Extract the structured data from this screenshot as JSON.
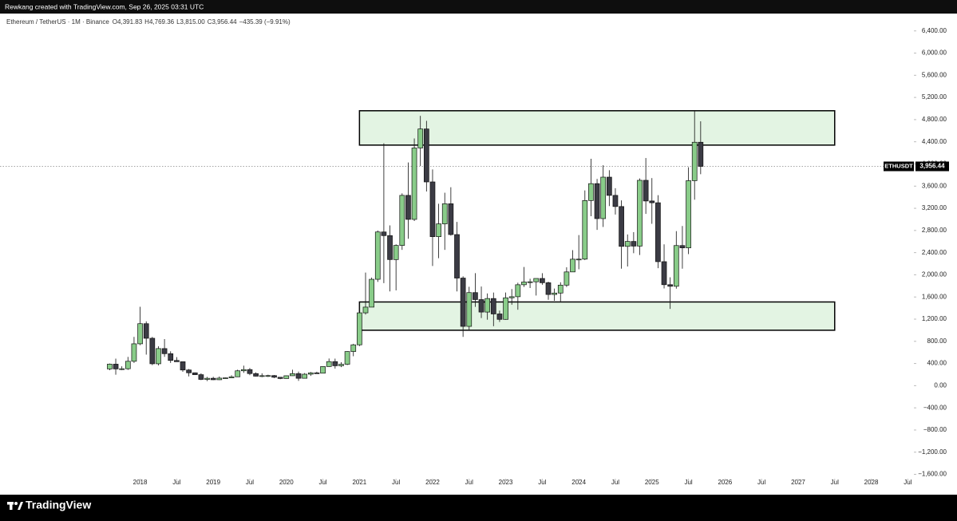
{
  "header": {
    "credit": "Rewkang created with TradingView.com, Sep 26, 2025 03:31 UTC"
  },
  "footer": {
    "brand": "TradingView"
  },
  "chart_data": {
    "type": "candlestick",
    "instrument": "Ethereum / TetherUS · 1M · Binance",
    "legend_values": [
      {
        "key": "O",
        "text": "4,391.83"
      },
      {
        "key": "H",
        "text": "4,769.36"
      },
      {
        "key": "L",
        "text": "3,815.00"
      },
      {
        "key": "C",
        "text": "3,956.44"
      }
    ],
    "change": "−435.39 (−9.91%)",
    "symbol": "ETHUSDT",
    "last_price": {
      "value": 3956.44,
      "label": "3,956.44"
    },
    "up_color": "#89cc89",
    "down_color": "#3b3b44",
    "zone_color": "#e3f4e3",
    "x": [
      "2017-08",
      "2017-09",
      "2017-10",
      "2017-11",
      "2017-12",
      "2018-01",
      "2018-02",
      "2018-03",
      "2018-04",
      "2018-05",
      "2018-06",
      "2018-07",
      "2018-08",
      "2018-09",
      "2018-10",
      "2018-11",
      "2018-12",
      "2019-01",
      "2019-02",
      "2019-03",
      "2019-04",
      "2019-05",
      "2019-06",
      "2019-07",
      "2019-08",
      "2019-09",
      "2019-10",
      "2019-11",
      "2019-12",
      "2020-01",
      "2020-02",
      "2020-03",
      "2020-04",
      "2020-05",
      "2020-06",
      "2020-07",
      "2020-08",
      "2020-09",
      "2020-10",
      "2020-11",
      "2020-12",
      "2021-01",
      "2021-02",
      "2021-03",
      "2021-04",
      "2021-05",
      "2021-06",
      "2021-07",
      "2021-08",
      "2021-09",
      "2021-10",
      "2021-11",
      "2021-12",
      "2022-01",
      "2022-02",
      "2022-03",
      "2022-04",
      "2022-05",
      "2022-06",
      "2022-07",
      "2022-08",
      "2022-09",
      "2022-10",
      "2022-11",
      "2022-12",
      "2023-01",
      "2023-02",
      "2023-03",
      "2023-04",
      "2023-05",
      "2023-06",
      "2023-07",
      "2023-08",
      "2023-09",
      "2023-10",
      "2023-11",
      "2023-12",
      "2024-01",
      "2024-02",
      "2024-03",
      "2024-04",
      "2024-05",
      "2024-06",
      "2024-07",
      "2024-08",
      "2024-09",
      "2024-10",
      "2024-11",
      "2024-12",
      "2025-01",
      "2025-02",
      "2025-03",
      "2025-04",
      "2025-05",
      "2025-06",
      "2025-07",
      "2025-08",
      "2025-09"
    ],
    "open": [
      302,
      388,
      302,
      305,
      440,
      755,
      1118,
      855,
      395,
      669,
      577,
      455,
      432,
      283,
      232,
      198,
      113,
      133,
      107,
      136,
      141,
      160,
      268,
      290,
      218,
      171,
      180,
      182,
      152,
      129,
      179,
      217,
      133,
      207,
      231,
      225,
      345,
      434,
      359,
      386,
      616,
      737,
      1314,
      1417,
      1919,
      2773,
      2707,
      2275,
      2530,
      3433,
      3000,
      4288,
      4631,
      3676,
      2688,
      2919,
      3282,
      2726,
      1941,
      1070,
      1679,
      1553,
      1328,
      1572,
      1294,
      1196,
      1585,
      1605,
      1821,
      1870,
      1874,
      1934,
      1857,
      1645,
      1671,
      1814,
      2052,
      2282,
      2283,
      3340,
      3645,
      3014,
      3762,
      3433,
      3232,
      2513,
      2602,
      2518,
      3705,
      3332,
      3300,
      2237,
      1822,
      1793,
      2528,
      2486,
      3698,
      4391.83
    ],
    "high": [
      399,
      488,
      349,
      519,
      880,
      1424,
      1160,
      880,
      710,
      840,
      620,
      515,
      435,
      300,
      238,
      223,
      158,
      160,
      166,
      146,
      187,
      288,
      361,
      319,
      239,
      223,
      197,
      192,
      153,
      183,
      288,
      253,
      227,
      247,
      252,
      350,
      490,
      488,
      422,
      622,
      755,
      1476,
      2041,
      1950,
      2800,
      4372,
      2891,
      2550,
      3470,
      4027,
      4460,
      4868,
      4778,
      3900,
      3282,
      3481,
      3580,
      2954,
      1973,
      1784,
      2030,
      1789,
      1664,
      1680,
      1353,
      1680,
      1743,
      1857,
      2141,
      1928,
      1930,
      2029,
      1877,
      1752,
      1865,
      2135,
      2445,
      2717,
      3523,
      4093,
      3730,
      3977,
      3887,
      3562,
      3343,
      2728,
      2770,
      3739,
      4107,
      3745,
      3437,
      2550,
      1955,
      2788,
      2880,
      3941,
      4956,
      4769.36
    ],
    "low": [
      279,
      197,
      281,
      285,
      410,
      730,
      560,
      370,
      365,
      520,
      410,
      430,
      250,
      167,
      193,
      100,
      82,
      101,
      102,
      130,
      140,
      156,
      231,
      188,
      165,
      153,
      156,
      136,
      117,
      127,
      177,
      86,
      131,
      176,
      214,
      222,
      340,
      308,
      334,
      371,
      531,
      714,
      1283,
      1434,
      1872,
      1850,
      1700,
      1719,
      2450,
      2651,
      2970,
      3964,
      3503,
      2159,
      2300,
      2450,
      2706,
      1700,
      880,
      1000,
      1422,
      1220,
      1190,
      1073,
      1150,
      1190,
      1460,
      1370,
      1782,
      1761,
      1626,
      1820,
      1550,
      1531,
      1521,
      1779,
      2050,
      2100,
      2265,
      3057,
      2811,
      2863,
      3240,
      3087,
      2111,
      2150,
      2390,
      2357,
      3099,
      2920,
      2120,
      1754,
      1385,
      1750,
      2111,
      2373,
      3355,
      3815
    ],
    "close": [
      388,
      302,
      305,
      440,
      755,
      1118,
      855,
      395,
      669,
      577,
      455,
      432,
      283,
      232,
      198,
      113,
      133,
      107,
      136,
      141,
      160,
      268,
      290,
      218,
      171,
      180,
      182,
      152,
      129,
      179,
      217,
      133,
      207,
      231,
      225,
      345,
      434,
      359,
      386,
      616,
      737,
      1314,
      1417,
      1919,
      2773,
      2707,
      2275,
      2530,
      3433,
      3000,
      4288,
      4631,
      3676,
      2688,
      2919,
      3282,
      2726,
      1941,
      1070,
      1679,
      1553,
      1328,
      1572,
      1294,
      1196,
      1585,
      1605,
      1821,
      1870,
      1874,
      1934,
      1857,
      1645,
      1671,
      1814,
      2052,
      2282,
      2283,
      3340,
      3645,
      3014,
      3762,
      3433,
      3232,
      2513,
      2602,
      2518,
      3705,
      3332,
      3300,
      2237,
      1822,
      1793,
      2528,
      2486,
      3698,
      4391.83,
      3956.44
    ],
    "zones": [
      {
        "x0": "2021-01",
        "x1": "2027-07",
        "top": 4960,
        "bottom": 4340
      },
      {
        "x0": "2021-01",
        "x1": "2027-07",
        "top": 1510,
        "bottom": 1000
      }
    ],
    "xlim": [
      "2016-02",
      "2028-08"
    ],
    "xticks": [
      {
        "value": "2018-01",
        "label": "2018"
      },
      {
        "value": "2018-07",
        "label": "Jul"
      },
      {
        "value": "2019-01",
        "label": "2019"
      },
      {
        "value": "2019-07",
        "label": "Jul"
      },
      {
        "value": "2020-01",
        "label": "2020"
      },
      {
        "value": "2020-07",
        "label": "Jul"
      },
      {
        "value": "2021-01",
        "label": "2021"
      },
      {
        "value": "2021-07",
        "label": "Jul"
      },
      {
        "value": "2022-01",
        "label": "2022"
      },
      {
        "value": "2022-07",
        "label": "Jul"
      },
      {
        "value": "2023-01",
        "label": "2023"
      },
      {
        "value": "2023-07",
        "label": "Jul"
      },
      {
        "value": "2024-01",
        "label": "2024"
      },
      {
        "value": "2024-07",
        "label": "Jul"
      },
      {
        "value": "2025-01",
        "label": "2025"
      },
      {
        "value": "2025-07",
        "label": "Jul"
      },
      {
        "value": "2026-01",
        "label": "2026"
      },
      {
        "value": "2026-07",
        "label": "Jul"
      },
      {
        "value": "2027-01",
        "label": "2027"
      },
      {
        "value": "2027-07",
        "label": "Jul"
      },
      {
        "value": "2028-01",
        "label": "2028"
      },
      {
        "value": "2028-07",
        "label": "Jul"
      }
    ],
    "ylim": [
      -1650,
      6670
    ],
    "yticks": [
      {
        "value": 6400,
        "label": "6,400.00"
      },
      {
        "value": 6000,
        "label": "6,000.00"
      },
      {
        "value": 5600,
        "label": "5,600.00"
      },
      {
        "value": 5200,
        "label": "5,200.00"
      },
      {
        "value": 4800,
        "label": "4,800.00"
      },
      {
        "value": 4400,
        "label": "4,400.00"
      },
      {
        "value": 4000,
        "label": "4,000.00"
      },
      {
        "value": 3600,
        "label": "3,600.00"
      },
      {
        "value": 3200,
        "label": "3,200.00"
      },
      {
        "value": 2800,
        "label": "2,800.00"
      },
      {
        "value": 2400,
        "label": "2,400.00"
      },
      {
        "value": 2000,
        "label": "2,000.00"
      },
      {
        "value": 1600,
        "label": "1,600.00"
      },
      {
        "value": 1200,
        "label": "1,200.00"
      },
      {
        "value": 800,
        "label": "800.00"
      },
      {
        "value": 400,
        "label": "400.00"
      },
      {
        "value": 0,
        "label": "0.00"
      },
      {
        "value": -400,
        "label": "−400.00"
      },
      {
        "value": -800,
        "label": "−800.00"
      },
      {
        "value": -1200,
        "label": "−1,200.00"
      },
      {
        "value": -1600,
        "label": "−1,600.00"
      }
    ]
  }
}
